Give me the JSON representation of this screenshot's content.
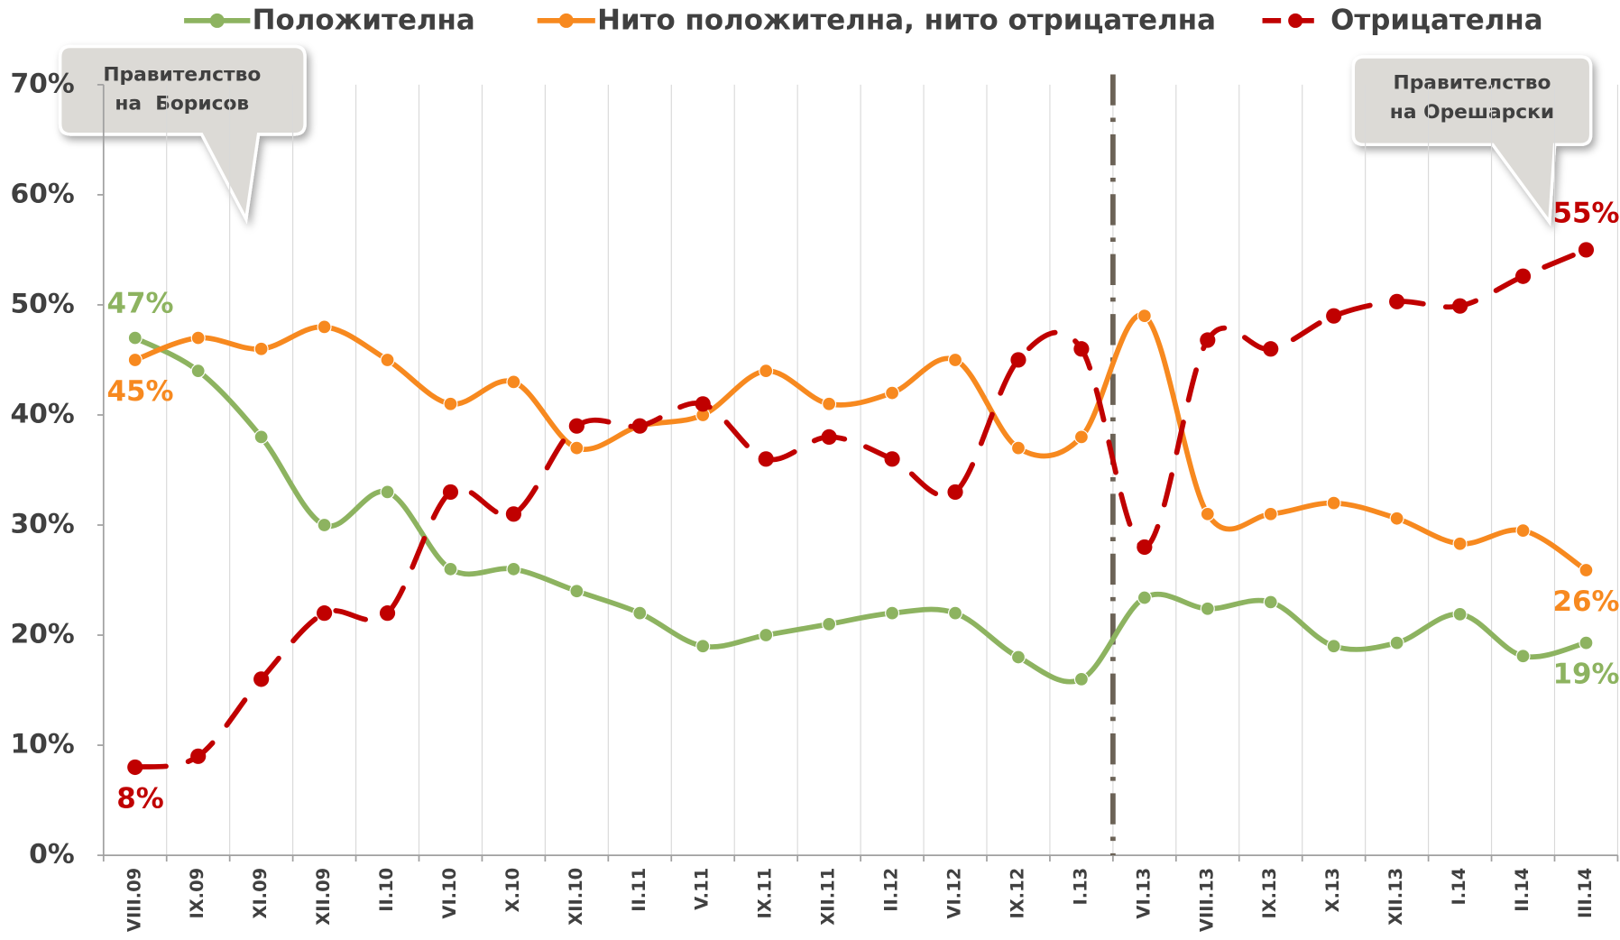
{
  "chart_data": {
    "type": "line",
    "categories": [
      "VIII.09",
      "IX.09",
      "XI.09",
      "XII.09",
      "II.10",
      "VI.10",
      "X.10",
      "XII.10",
      "II.11",
      "V.11",
      "IX.11",
      "XII.11",
      "II.12",
      "VI.12",
      "IX.12",
      "I.13",
      "VI.13",
      "VIII.13",
      "IX.13",
      "X.13",
      "XII.13",
      "I.14",
      "II.14",
      "III.14"
    ],
    "series": [
      {
        "name": "Положителна",
        "color": "#8db360",
        "dash": false,
        "values": [
          47,
          44,
          38,
          30,
          33,
          26,
          26,
          24,
          22,
          19,
          20,
          21,
          22,
          22,
          18,
          16,
          23.4,
          22.4,
          23,
          19,
          19.3,
          21.9,
          18.1,
          19.3
        ],
        "value_labels": [
          "47%",
          null,
          null,
          null,
          null,
          null,
          null,
          null,
          null,
          null,
          null,
          null,
          null,
          null,
          null,
          null,
          null,
          null,
          null,
          null,
          null,
          null,
          null,
          "19%"
        ]
      },
      {
        "name": "Нито положителна, нито отрицателна",
        "color": "#f7891f",
        "dash": false,
        "values": [
          45,
          47,
          46,
          48,
          45,
          41,
          43,
          37,
          39,
          40,
          44,
          41,
          42,
          45,
          37,
          38,
          49,
          31,
          31,
          32,
          30.6,
          28.3,
          29.5,
          25.9
        ],
        "value_labels": [
          "45%",
          null,
          null,
          null,
          null,
          null,
          null,
          null,
          null,
          null,
          null,
          null,
          null,
          null,
          null,
          null,
          null,
          null,
          null,
          null,
          null,
          null,
          null,
          "26%"
        ]
      },
      {
        "name": "Отрицателна",
        "color": "#c00000",
        "dash": true,
        "values": [
          8,
          9,
          16,
          22,
          22,
          33,
          31,
          39,
          39,
          41,
          36,
          38,
          36,
          33,
          45,
          46,
          28,
          46.8,
          46,
          49,
          50.3,
          49.9,
          52.6,
          55
        ],
        "value_labels": [
          "8%",
          null,
          null,
          null,
          null,
          null,
          null,
          null,
          null,
          null,
          null,
          null,
          null,
          null,
          null,
          null,
          null,
          null,
          null,
          null,
          null,
          null,
          null,
          "55%"
        ]
      }
    ],
    "ylim": [
      0,
      70
    ],
    "yticks": [
      {
        "value": 0,
        "label": "0%"
      },
      {
        "value": 10,
        "label": "10%"
      },
      {
        "value": 20,
        "label": "20%"
      },
      {
        "value": 30,
        "label": "30%"
      },
      {
        "value": 40,
        "label": "40%"
      },
      {
        "value": 50,
        "label": "50%"
      },
      {
        "value": 60,
        "label": "60%"
      },
      {
        "value": 70,
        "label": "70%"
      }
    ],
    "grid": "vertical",
    "legend": "top",
    "annotations": [
      {
        "lines": [
          "Правителство",
          "на  Борисов"
        ]
      },
      {
        "lines": [
          "Правителство",
          "на Орешарски"
        ]
      }
    ]
  }
}
